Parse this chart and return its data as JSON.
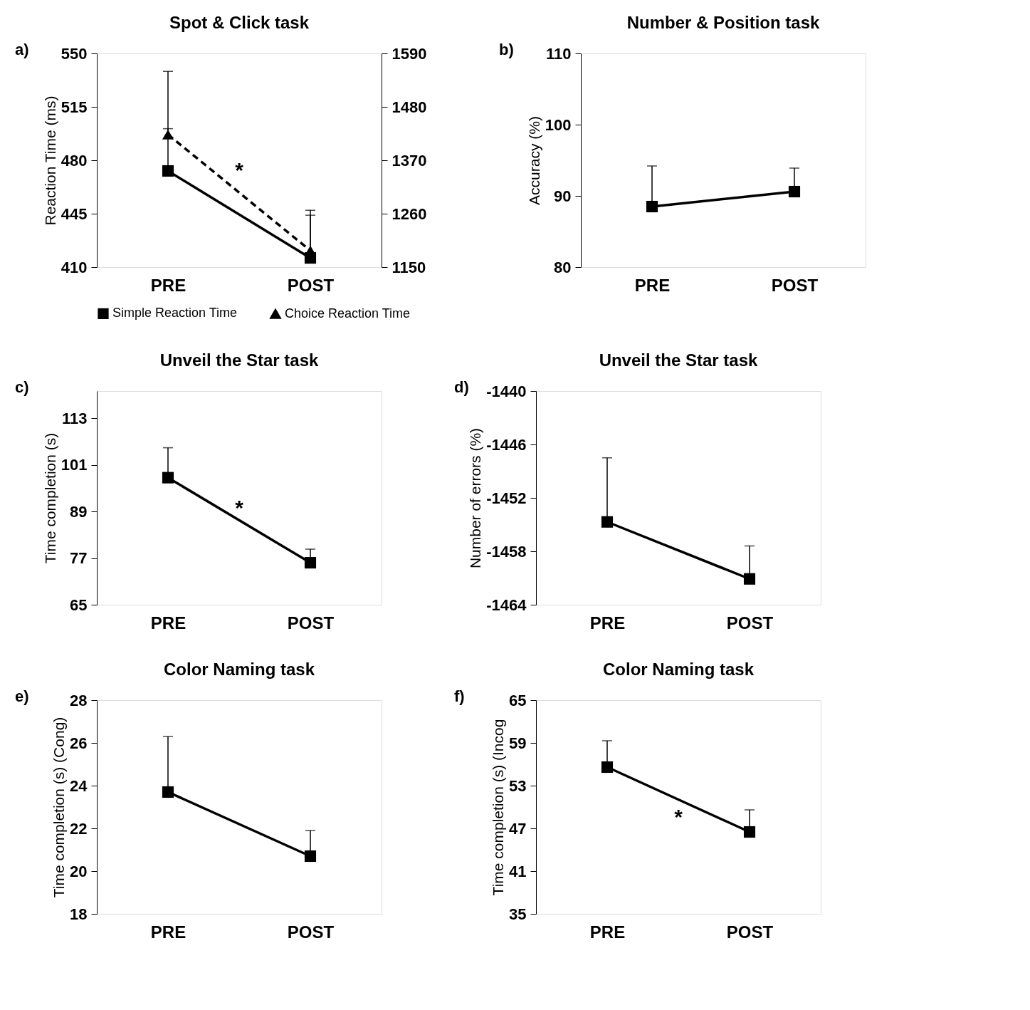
{
  "chart_data": [
    {
      "type": "line",
      "title": "Spot & Click task",
      "ylabel": "Reaction Time (ms)",
      "categories": [
        "PRE",
        "POST"
      ],
      "ylim": [
        410,
        550
      ],
      "yticks": [
        410,
        445,
        480,
        515,
        550
      ],
      "y2lim": [
        1150,
        1590
      ],
      "y2ticks": [
        1150,
        1260,
        1370,
        1480,
        1590
      ],
      "marker": "square",
      "legend": "bottom",
      "annotations": [
        "a)",
        "*"
      ],
      "series": [
        {
          "name": "Simple Reaction Time",
          "color": "#000000",
          "values": [
            473,
            416
          ],
          "errors": [
            [
              473,
              500.7
            ],
            [
              416,
              444
            ]
          ],
          "line_style": "solid",
          "marker": "square"
        },
        {
          "name": "Choice Reaction Time",
          "color": "#000000",
          "values": [
            1423,
            1184
          ],
          "errors": [
            [
              1423,
              1553
            ],
            [
              1184,
              1267
            ]
          ],
          "line_style": "dashed",
          "marker": "triangle",
          "axis": "y2"
        }
      ]
    },
    {
      "type": "line",
      "title": "Number & Position task",
      "ylabel": "Accuracy (%)",
      "categories": [
        "PRE",
        "POST"
      ],
      "ylim": [
        80,
        110
      ],
      "yticks": [
        80,
        90,
        100,
        110
      ],
      "marker": "square",
      "annotations": [
        "b)"
      ],
      "series": [
        {
          "color": "#000000",
          "values": [
            88.5,
            90.6
          ],
          "errors": [
            [
              88.5,
              94.2
            ],
            [
              90.6,
              93.9
            ]
          ],
          "line_style": "solid"
        }
      ]
    },
    {
      "type": "line",
      "title": "Unveil the Star task",
      "ylabel": "Time completion (s)",
      "categories": [
        "PRE",
        "POST"
      ],
      "ylim": [
        65,
        120
      ],
      "yticks": [
        65,
        77,
        89,
        101,
        113
      ],
      "marker": "square",
      "annotations": [
        "c)",
        "*"
      ],
      "series": [
        {
          "color": "#000000",
          "values": [
            97.7,
            75.8
          ],
          "errors": [
            [
              97.7,
              105.4
            ],
            [
              75.8,
              79.3
            ]
          ],
          "line_style": "solid"
        }
      ]
    },
    {
      "type": "line",
      "title": "Unveil the Star task",
      "ylabel": "Number of errors (%)",
      "categories": [
        "PRE",
        "POST"
      ],
      "ylim": [
        -1464,
        -1440
      ],
      "yticks": [
        -1464,
        -1458,
        -1452,
        -1446,
        -1440
      ],
      "marker": "square",
      "annotations": [
        "d)"
      ],
      "series": [
        {
          "color": "#000000",
          "values": [
            -1454.7,
            -1461.1
          ],
          "errors": [
            [
              -1454.7,
              -1447.5
            ],
            [
              -1461.1,
              -1457.4
            ]
          ],
          "line_style": "solid"
        }
      ]
    },
    {
      "type": "line",
      "title": "Color Naming task",
      "ylabel": "Time completion (s) (Cong)",
      "categories": [
        "PRE",
        "POST"
      ],
      "ylim": [
        18,
        28
      ],
      "yticks": [
        18,
        20,
        22,
        24,
        26,
        28
      ],
      "marker": "square",
      "annotations": [
        "e)"
      ],
      "series": [
        {
          "color": "#000000",
          "values": [
            23.7,
            20.7
          ],
          "errors": [
            [
              23.7,
              26.3
            ],
            [
              20.7,
              21.9
            ]
          ],
          "line_style": "solid"
        }
      ]
    },
    {
      "type": "line",
      "title": "Color Naming task",
      "ylabel": "Time completion (s) (Incog",
      "categories": [
        "PRE",
        "POST"
      ],
      "ylim": [
        35,
        65
      ],
      "yticks": [
        35,
        41,
        47,
        53,
        59,
        65
      ],
      "marker": "square",
      "annotations": [
        "f)",
        "*"
      ],
      "series": [
        {
          "color": "#000000",
          "values": [
            55.6,
            46.5
          ],
          "errors": [
            [
              55.6,
              59.3
            ],
            [
              46.5,
              49.6
            ]
          ],
          "line_style": "solid"
        }
      ]
    }
  ]
}
